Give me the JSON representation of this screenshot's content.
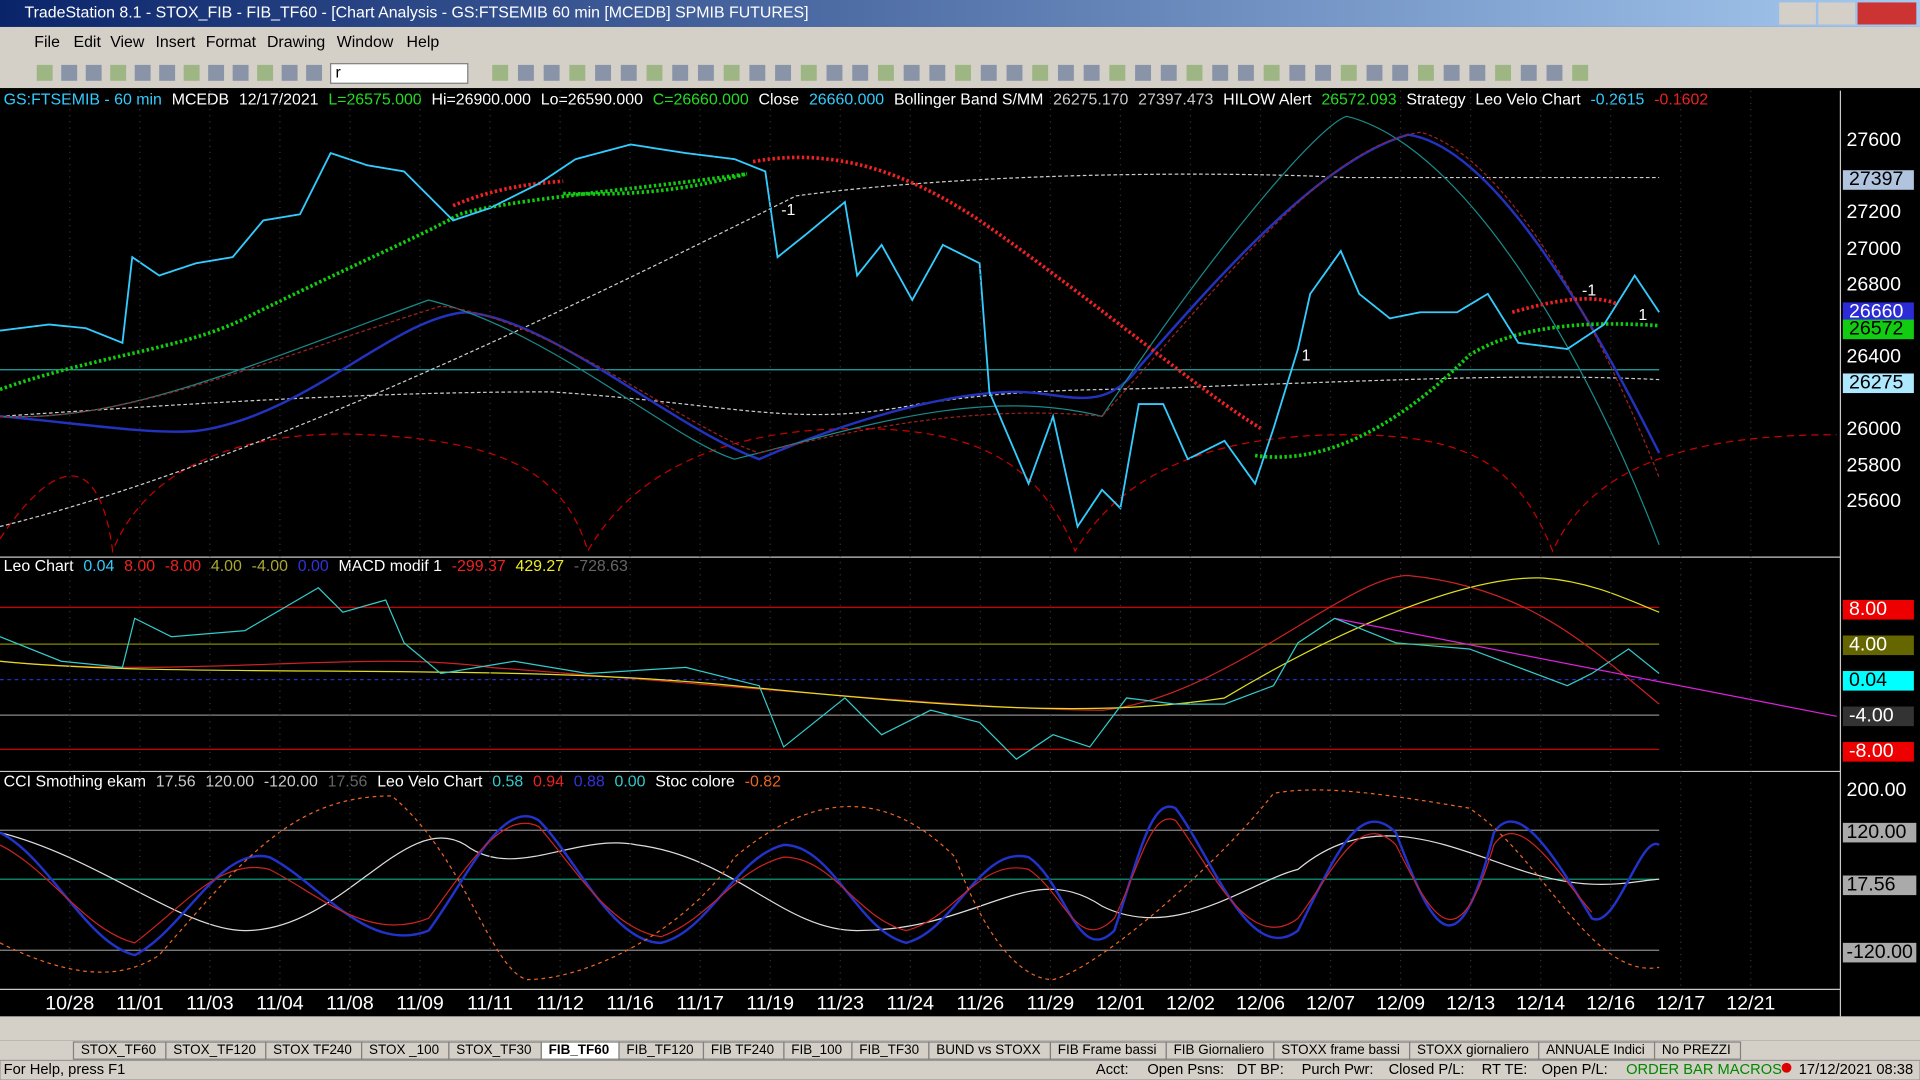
{
  "window": {
    "title": "TradeStation 8.1 - STOX_FIB - FIB_TF60 - [Chart Analysis - GS:FTSEMIB  60 min  [MCEDB] SPMIB FUTURES]"
  },
  "menu": [
    "File",
    "Edit",
    "View",
    "Insert",
    "Format",
    "Drawing",
    "Window",
    "Help"
  ],
  "toolbar": {
    "symbol_input": "r"
  },
  "price_panel": {
    "header": [
      "GS:FTSEMIB - 60 min",
      "MCEDB",
      "12/17/2021",
      "L=26575.000",
      "Hi=26900.000",
      "Lo=26590.000",
      "C=26660.000",
      "Close",
      "26660.000",
      "Bollinger Band S/MM",
      "26275.170",
      "27397.473",
      "HILOW Alert",
      "26572.093",
      "Strategy",
      "Leo Velo Chart",
      "-0.2615",
      "-0.1602"
    ],
    "axis_labels": [
      "27600",
      "27200",
      "27000",
      "26800",
      "26400",
      "26000",
      "25800",
      "25600"
    ],
    "highlight_labels": [
      "27397",
      "26660",
      "26572",
      "26275"
    ],
    "annotations": [
      "-1",
      "1",
      "-1",
      "1"
    ]
  },
  "oscillator_panel": {
    "header": [
      "Leo Chart",
      "0.04",
      "8.00",
      "-8.00",
      "4.00",
      "-4.00",
      "0.00",
      "MACD modif 1",
      "-299.37",
      "429.27",
      "-728.63"
    ],
    "axis_labels": [
      "8.00",
      "4.00",
      "0.04",
      "-4.00",
      "-8.00"
    ]
  },
  "cci_panel": {
    "header": [
      "CCI Smothing ekam",
      "17.56",
      "120.00",
      "-120.00",
      "17.56",
      "Leo Velo Chart",
      "0.58",
      "0.94",
      "0.88",
      "0.00",
      "Stoc colore",
      "-0.82"
    ],
    "axis_labels": [
      "200.00",
      "120.00",
      "17.56",
      "-120.00"
    ]
  },
  "dates": [
    "10/28",
    "11/01",
    "11/03",
    "11/04",
    "11/08",
    "11/09",
    "11/11",
    "11/12",
    "11/16",
    "11/17",
    "11/19",
    "11/23",
    "11/24",
    "11/26",
    "11/29",
    "12/01",
    "12/02",
    "12/06",
    "12/07",
    "12/09",
    "12/13",
    "12/14",
    "12/16",
    "12/17",
    "12/21"
  ],
  "tabs": [
    "STOX_TF60",
    "STOX_TF120",
    "STOX TF240",
    "STOX _100",
    "STOX_TF30",
    "FIB_TF60",
    "FIB_TF120",
    "FIB TF240",
    "FIB_100",
    "FIB_TF30",
    "BUND vs STOXX",
    "FIB Frame bassi",
    "FIB Giornaliero",
    "STOXX frame bassi",
    "STOXX giornaliero",
    "ANNUALE Indici",
    "No PREZZI"
  ],
  "status": {
    "help": "For Help, press F1",
    "fields": [
      "Acct:",
      "Open Psns:",
      "DT BP:",
      "Purch Pwr:",
      "Closed P/L:",
      "RT TE:",
      "Open P/L:"
    ],
    "macros": "ORDER BAR  MACROS",
    "clock": "17/12/2021 08:38"
  }
}
